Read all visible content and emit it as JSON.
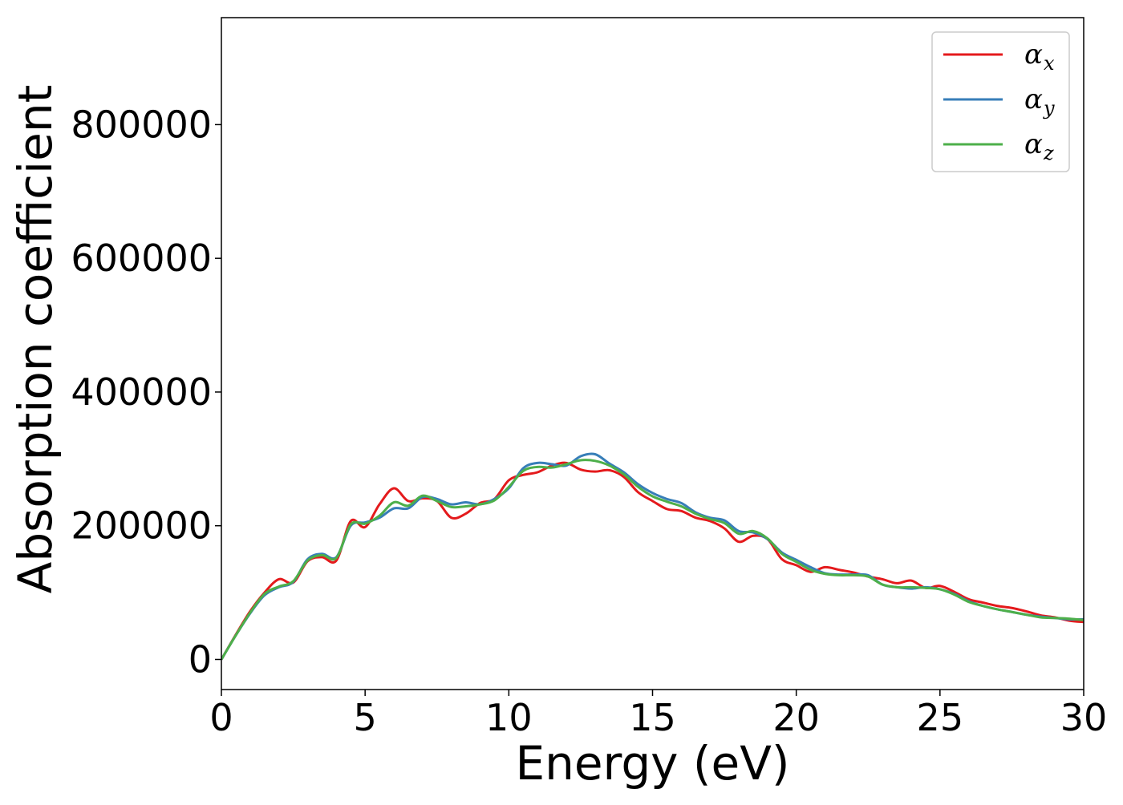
{
  "chart_data": {
    "type": "line",
    "title": "",
    "xlabel": "Energy (eV)",
    "ylabel": "Absorption coefficient",
    "xlim": [
      0,
      30
    ],
    "ylim": [
      -45000,
      960000
    ],
    "xticks": [
      0,
      5,
      10,
      15,
      20,
      25,
      30
    ],
    "yticks": [
      0,
      200000,
      400000,
      600000,
      800000
    ],
    "xtick_labels": [
      "0",
      "5",
      "10",
      "15",
      "20",
      "25",
      "30"
    ],
    "ytick_labels": [
      "0",
      "200000",
      "400000",
      "600000",
      "800000"
    ],
    "grid": false,
    "legend_position": "top-right",
    "x": [
      0,
      0.5,
      1,
      1.5,
      2,
      2.5,
      3,
      3.5,
      4,
      4.5,
      5,
      5.5,
      6,
      6.5,
      7,
      7.5,
      8,
      8.5,
      9,
      9.5,
      10,
      10.5,
      11,
      11.5,
      12,
      12.5,
      13,
      13.5,
      14,
      14.5,
      15,
      15.5,
      16,
      16.5,
      17,
      17.5,
      18,
      18.5,
      19,
      19.5,
      20,
      20.5,
      21,
      21.5,
      22,
      22.5,
      23,
      23.5,
      24,
      24.5,
      25,
      25.5,
      26,
      26.5,
      27,
      27.5,
      28,
      28.5,
      29,
      29.5,
      30
    ],
    "series": [
      {
        "name": "α",
        "subscript": "x",
        "color": "#e41a1c",
        "values": [
          0,
          37000,
          72000,
          100000,
          120000,
          115000,
          147000,
          153000,
          148000,
          207000,
          198000,
          232000,
          256000,
          237000,
          241000,
          237000,
          212000,
          218000,
          234000,
          240000,
          268000,
          276000,
          280000,
          290000,
          294000,
          284000,
          281000,
          283000,
          273000,
          250000,
          237000,
          225000,
          222000,
          212000,
          207000,
          196000,
          176000,
          185000,
          180000,
          150000,
          141000,
          131000,
          138000,
          134000,
          130000,
          124000,
          120000,
          114000,
          118000,
          107000,
          110000,
          101000,
          90000,
          85000,
          80000,
          77000,
          72000,
          66000,
          63000,
          58000,
          56000
        ]
      },
      {
        "name": "α",
        "subscript": "y",
        "color": "#377eb8",
        "values": [
          0,
          36000,
          69000,
          96000,
          108000,
          116000,
          150000,
          158000,
          153000,
          200000,
          205000,
          212000,
          226000,
          226000,
          243000,
          240000,
          232000,
          235000,
          232000,
          240000,
          256000,
          286000,
          294000,
          292000,
          290000,
          304000,
          307000,
          293000,
          280000,
          262000,
          249000,
          240000,
          234000,
          220000,
          212000,
          208000,
          192000,
          190000,
          180000,
          160000,
          149000,
          138000,
          129000,
          127000,
          127000,
          126000,
          112000,
          108000,
          106000,
          108000,
          105000,
          98000,
          87000,
          80000,
          75000,
          71000,
          67000,
          64000,
          62000,
          60000,
          60000
        ]
      },
      {
        "name": "α",
        "subscript": "z",
        "color": "#4daf4a",
        "values": [
          0,
          36000,
          70000,
          98000,
          109000,
          117000,
          148000,
          156000,
          152000,
          202000,
          203000,
          215000,
          235000,
          230000,
          245000,
          237000,
          228000,
          229000,
          232000,
          238000,
          258000,
          282000,
          288000,
          287000,
          292000,
          298000,
          297000,
          290000,
          277000,
          258000,
          244000,
          236000,
          229000,
          218000,
          210000,
          204000,
          188000,
          192000,
          181000,
          158000,
          146000,
          134000,
          128000,
          126000,
          126000,
          124000,
          112000,
          108000,
          108000,
          107000,
          105000,
          97000,
          86000,
          80000,
          75000,
          71000,
          67000,
          63000,
          62000,
          61000,
          59000
        ]
      }
    ]
  }
}
